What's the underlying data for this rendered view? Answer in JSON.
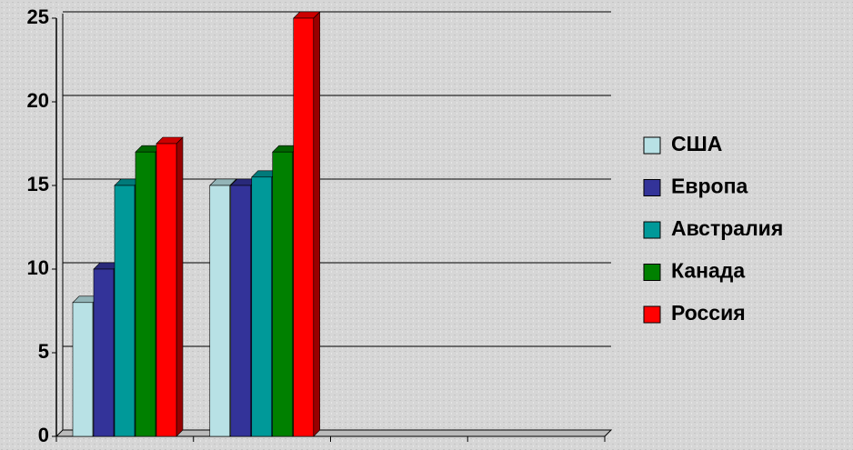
{
  "chart_data": {
    "type": "bar",
    "categories": [
      null,
      null,
      null,
      null
    ],
    "series": [
      {
        "name": "США",
        "color": "#b8e1e5",
        "values": [
          8,
          15,
          null,
          null
        ]
      },
      {
        "name": "Европа",
        "color": "#333399",
        "values": [
          10,
          15,
          null,
          null
        ]
      },
      {
        "name": "Австралия",
        "color": "#009999",
        "values": [
          15,
          15.5,
          null,
          null
        ]
      },
      {
        "name": "Канада",
        "color": "#008000",
        "values": [
          17,
          17,
          null,
          null
        ]
      },
      {
        "name": "Россия",
        "color": "#ff0000",
        "values": [
          17.5,
          25,
          null,
          null
        ]
      }
    ],
    "ylim": [
      0,
      25
    ],
    "yticks": [
      0,
      5,
      10,
      15,
      20,
      25
    ],
    "grid": true,
    "legend": "right"
  }
}
